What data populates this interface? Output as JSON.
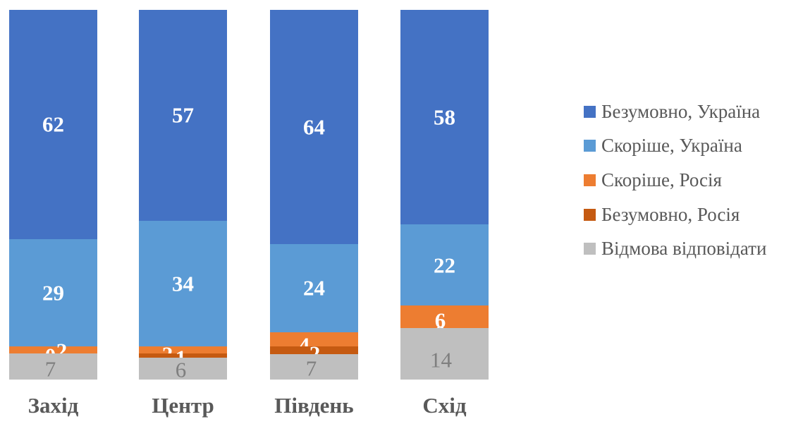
{
  "chart_data": {
    "type": "bar",
    "stacked": true,
    "orientation": "vertical",
    "units": "percent",
    "title": "",
    "xlabel": "",
    "ylabel": "",
    "axes_hidden": true,
    "grid": false,
    "legend_position": "right",
    "categories": [
      "Захід",
      "Центр",
      "Південь",
      "Схід"
    ],
    "series": [
      {
        "name": "Безумовно, Україна",
        "color": "#4472C4",
        "values": [
          62,
          57,
          64,
          58
        ]
      },
      {
        "name": "Скоріше, Україна",
        "color": "#5B9BD5",
        "values": [
          29,
          34,
          24,
          22
        ]
      },
      {
        "name": "Скоріше, Росія",
        "color": "#ED7D31",
        "values": [
          2,
          2,
          4,
          6
        ]
      },
      {
        "name": "Безумовно, Росія",
        "color": "#C55A11",
        "values": [
          0,
          1,
          2,
          0
        ]
      },
      {
        "name": "Відмова відповідати",
        "color": "#BFBFBF",
        "values": [
          7,
          6,
          7,
          14
        ]
      }
    ],
    "value_label_colors": {
      "on_segment": "#FFFFFF",
      "on_gray_segment": "#7F7F7F"
    },
    "text_color": "#595959",
    "background_color": "#FFFFFF"
  }
}
